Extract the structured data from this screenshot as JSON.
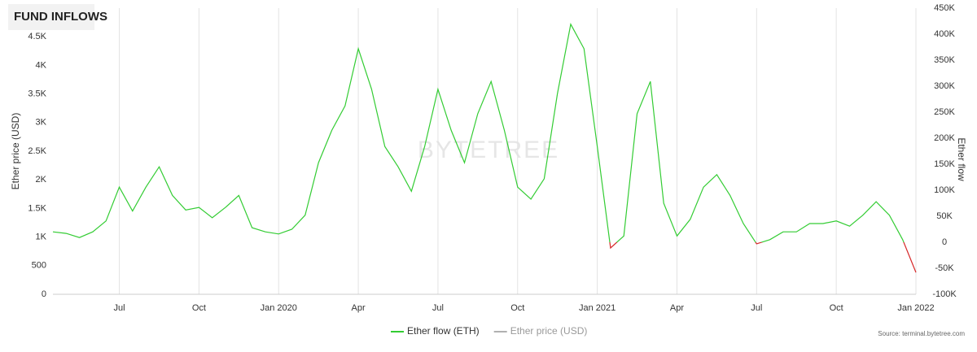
{
  "chart_data": {
    "type": "line",
    "title": "FUND INFLOWS",
    "watermark": "BYTETREE",
    "source": "Source: terminal.bytetree.com",
    "ylabel": "Ether price (USD)",
    "y2label": "Ether flow",
    "categories": [
      null,
      null,
      null,
      null,
      null,
      "Jul",
      null,
      null,
      null,
      null,
      null,
      "Oct",
      null,
      null,
      null,
      null,
      null,
      "Jan 2020",
      null,
      null,
      null,
      null,
      null,
      "Apr",
      null,
      null,
      null,
      null,
      null,
      "Jul",
      null,
      null,
      null,
      null,
      null,
      "Oct",
      null,
      null,
      null,
      null,
      null,
      "Jan 2021",
      null,
      null,
      null,
      null,
      null,
      "Apr",
      null,
      null,
      null,
      null,
      null,
      "Jul",
      null,
      null,
      null,
      null,
      null,
      "Oct",
      null,
      null,
      null,
      null,
      null,
      "Jan 2022"
    ],
    "series": [
      {
        "name": "Ether flow (ETH)",
        "color": "#33cc33",
        "negative_color": "#d62728",
        "axis": "y2",
        "values": [
          20000,
          17000,
          9000,
          20000,
          41000,
          106000,
          60000,
          106000,
          145000,
          90000,
          62000,
          67000,
          47000,
          67000,
          90000,
          28000,
          20000,
          16000,
          25000,
          52000,
          153000,
          215000,
          262000,
          372000,
          294000,
          184000,
          145000,
          98000,
          184000,
          294000,
          215000,
          153000,
          247000,
          309000,
          215000,
          106000,
          83000,
          122000,
          286000,
          419000,
          372000,
          184000,
          -11000,
          12000,
          247000,
          309000,
          75000,
          12000,
          44000,
          106000,
          130000,
          90000,
          36000,
          -3000,
          5000,
          20000,
          20000,
          36000,
          36000,
          41000,
          31000,
          52000,
          78000,
          52000,
          5000,
          -58000
        ]
      },
      {
        "name": "Ether price (USD)",
        "color": "#b0b0b0",
        "hidden": true
      }
    ],
    "ylim": [
      0,
      5000
    ],
    "yticks": [
      0,
      500,
      {
        "value": 1000,
        "label": "1K"
      },
      {
        "value": 1500,
        "label": "1.5K"
      },
      {
        "value": 2000,
        "label": "2K"
      },
      {
        "value": 2500,
        "label": "2.5K"
      },
      {
        "value": 3000,
        "label": "3K"
      },
      {
        "value": 3500,
        "label": "3.5K"
      },
      {
        "value": 4000,
        "label": "4K"
      },
      {
        "value": 4500,
        "label": "4.5K"
      }
    ],
    "y2lim": [
      -100000,
      450000
    ],
    "y2ticks": [
      {
        "value": -100000,
        "label": "-100K"
      },
      {
        "value": -50000,
        "label": "-50K"
      },
      0,
      {
        "value": 50000,
        "label": "50K"
      },
      {
        "value": 100000,
        "label": "100K"
      },
      {
        "value": 150000,
        "label": "150K"
      },
      {
        "value": 200000,
        "label": "200K"
      },
      {
        "value": 250000,
        "label": "250K"
      },
      {
        "value": 300000,
        "label": "300K"
      },
      {
        "value": 350000,
        "label": "350K"
      },
      {
        "value": 400000,
        "label": "400K"
      },
      {
        "value": 450000,
        "label": "450K"
      }
    ],
    "grid": "x"
  }
}
